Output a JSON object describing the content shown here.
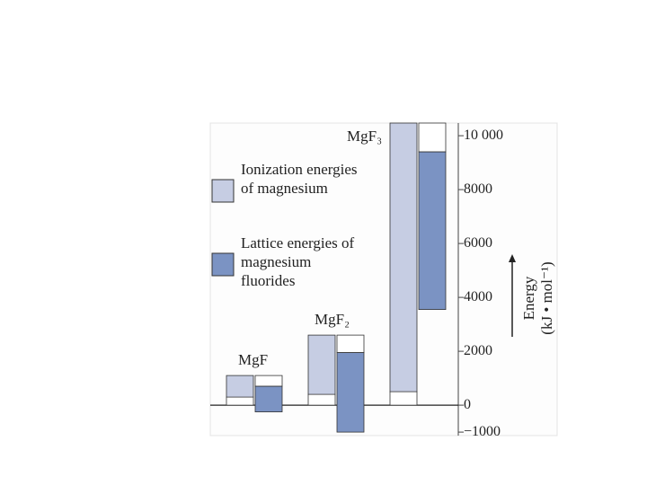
{
  "chart_data": {
    "type": "range-bar",
    "categories": [
      "MgF",
      "MgF₂",
      "MgF₃"
    ],
    "series": [
      {
        "name": "Ionization energies of magnesium",
        "color": "#c6cde3",
        "low": [
          300,
          400,
          500
        ],
        "high": [
          1100,
          2600,
          10470
        ]
      },
      {
        "name": "Lattice energies of magnesium fluorides",
        "color": "#7b93c3",
        "low": [
          -250,
          -1000,
          3550
        ],
        "high": [
          700,
          1950,
          9400
        ]
      }
    ],
    "ylabel": [
      "Energy",
      "(kJ • mol⁻¹)"
    ],
    "ylim": [
      -1130,
      10470
    ],
    "yticks": [
      {
        "value": -1000,
        "label": "−1000"
      },
      0,
      2000,
      4000,
      6000,
      8000,
      {
        "value": 10000,
        "label": "10 000"
      }
    ]
  }
}
